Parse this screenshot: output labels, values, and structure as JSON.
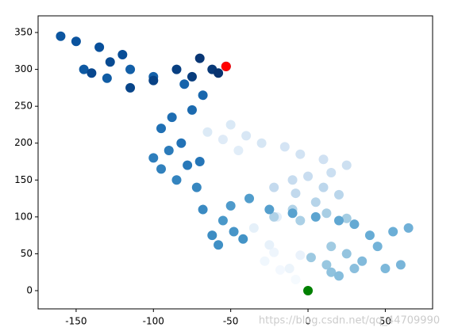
{
  "chart_data": {
    "type": "scatter",
    "x": [
      0,
      -8,
      -18,
      -28,
      -22,
      -12,
      -5,
      -25,
      -35,
      -20,
      -45,
      -55,
      -65,
      -50,
      -40,
      -30,
      -15,
      -5,
      10,
      25,
      15,
      0,
      -10,
      -22,
      -8,
      10,
      20,
      5,
      -10,
      -22,
      -5,
      12,
      25,
      15,
      2,
      12,
      25,
      15,
      30,
      20,
      35,
      50,
      60,
      45,
      65,
      55,
      40,
      30,
      20,
      5,
      -10,
      -25,
      -38,
      -50,
      -55,
      -48,
      -42,
      -58,
      -62,
      -68,
      -72,
      -85,
      -95,
      -100,
      -90,
      -78,
      -70,
      -82,
      -95,
      -88,
      -75,
      -68,
      -80,
      -100,
      -115,
      -130,
      -145,
      -160,
      -150,
      -135,
      -120,
      -128,
      -140,
      -115,
      -100,
      -85,
      -75,
      -62,
      -70,
      -58,
      -53
    ],
    "y": [
      0,
      15,
      28,
      40,
      52,
      30,
      48,
      62,
      85,
      100,
      190,
      205,
      215,
      225,
      210,
      200,
      195,
      185,
      178,
      170,
      160,
      155,
      150,
      140,
      132,
      140,
      130,
      120,
      110,
      100,
      95,
      105,
      98,
      60,
      45,
      35,
      50,
      25,
      30,
      20,
      40,
      30,
      35,
      60,
      85,
      80,
      75,
      90,
      95,
      100,
      105,
      110,
      125,
      115,
      95,
      80,
      70,
      62,
      75,
      110,
      140,
      150,
      165,
      180,
      190,
      170,
      175,
      200,
      220,
      235,
      245,
      265,
      280,
      290,
      300,
      288,
      300,
      345,
      338,
      330,
      320,
      310,
      295,
      275,
      285,
      300,
      290,
      300,
      315,
      295,
      304
    ],
    "colormap": [
      "#f7fbff",
      "#deebf7",
      "#c6dbef",
      "#9ecae1",
      "#6baed6",
      "#4292c6",
      "#2171b5",
      "#08519c",
      "#08306b"
    ],
    "start": {
      "x": 0,
      "y": 0,
      "color": "#008000"
    },
    "end": {
      "x": -53,
      "y": 304,
      "color": "#ff0000"
    },
    "xlim": [
      -174.6,
      80.6
    ],
    "ylim": [
      -24.7,
      372.6
    ],
    "xticks": [
      -150,
      -100,
      -50,
      0,
      50
    ],
    "yticks": [
      0,
      50,
      100,
      150,
      200,
      250,
      300,
      350
    ],
    "watermark": "https://blog.csdn.net/qq_44709990"
  }
}
